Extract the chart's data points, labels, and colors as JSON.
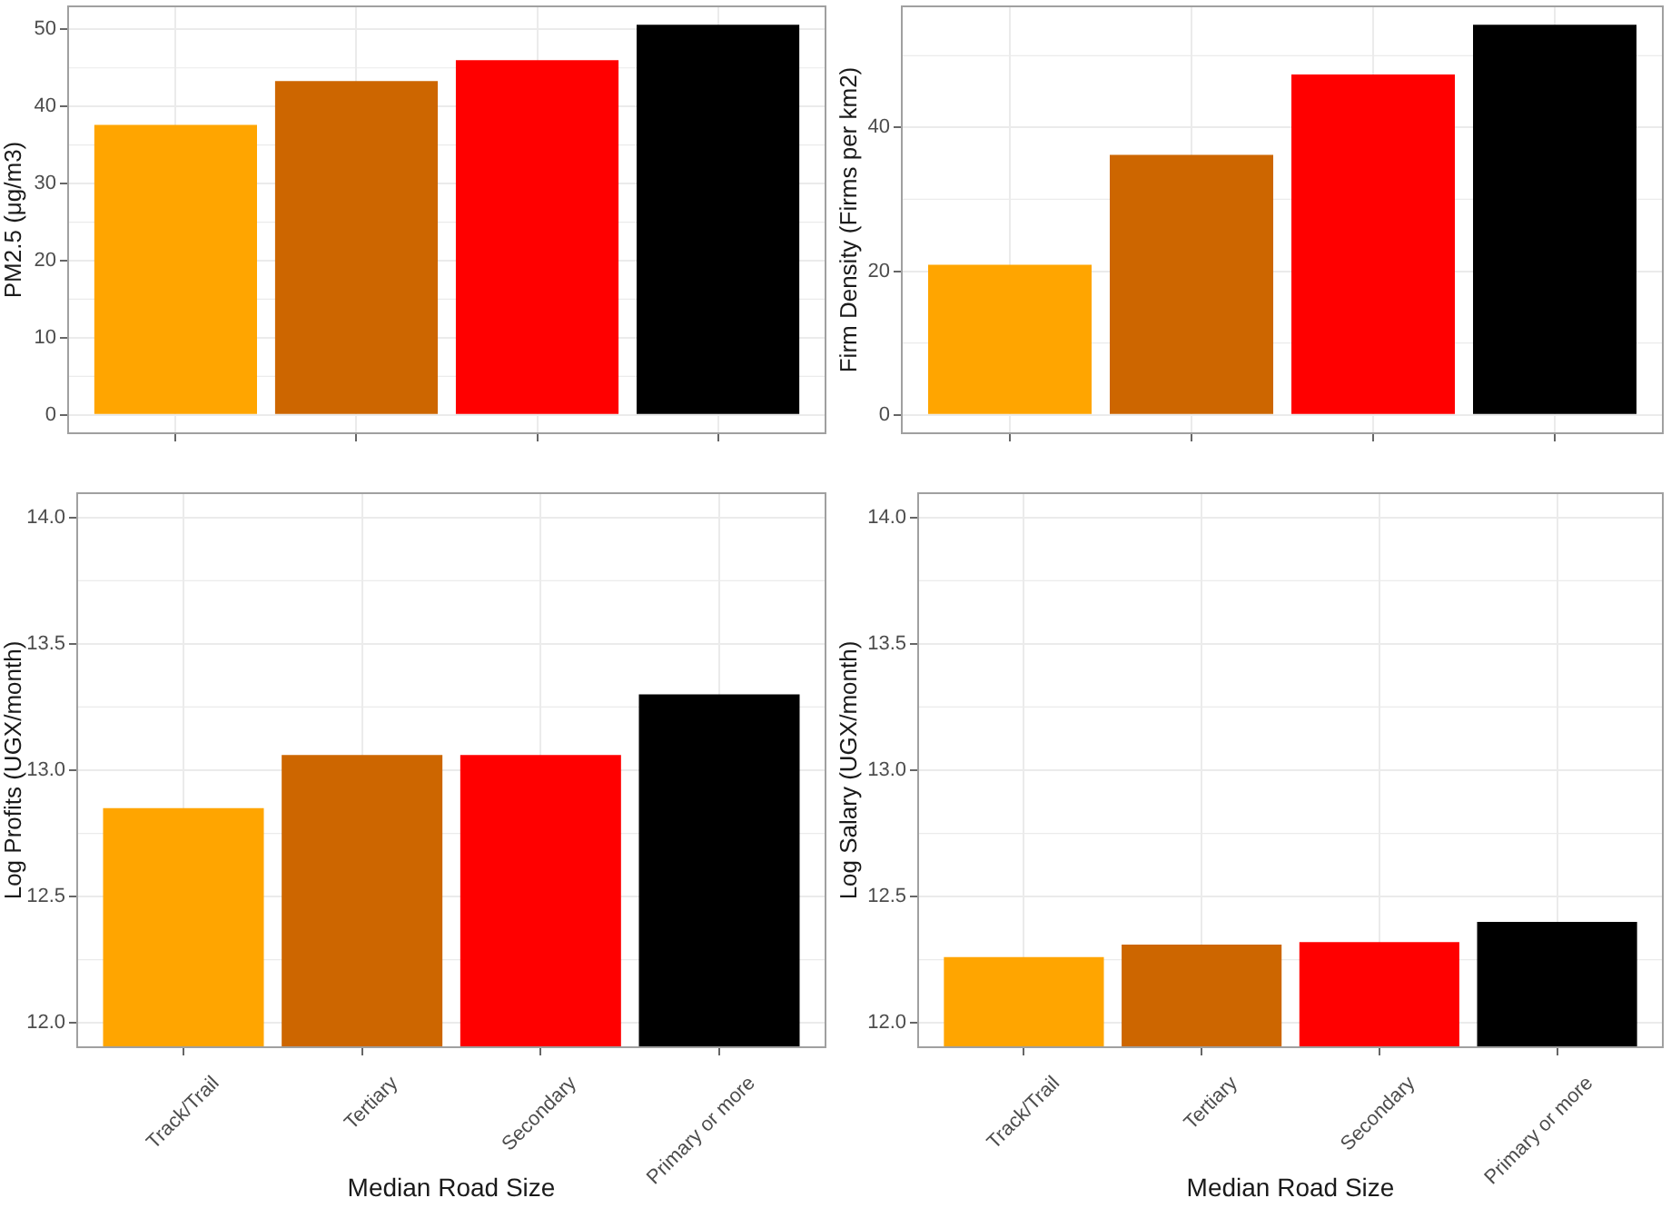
{
  "chart_data": [
    {
      "type": "bar",
      "ylabel": "PM2.5 (μg/m3)",
      "categories": [
        null,
        null,
        null,
        null
      ],
      "values": [
        37.6,
        43.3,
        46.0,
        50.6
      ],
      "colors": [
        "#ffa500",
        "#cd6600",
        "#ff0000",
        "#000000"
      ],
      "ylim": [
        -2.5,
        53.1
      ],
      "yticks": [
        0,
        10,
        20,
        30,
        40,
        50
      ],
      "grid": true
    },
    {
      "type": "bar",
      "ylabel": "Firm Density (Firms per km2)",
      "categories": [
        null,
        null,
        null,
        null
      ],
      "values": [
        20.9,
        36.2,
        47.4,
        54.3
      ],
      "colors": [
        "#ffa500",
        "#cd6600",
        "#ff0000",
        "#000000"
      ],
      "ylim": [
        -2.7,
        57.0
      ],
      "yticks": [
        0,
        20,
        40
      ],
      "grid": true
    },
    {
      "type": "bar",
      "xlabel": "Median Road Size",
      "ylabel": "Log Profits (UGX/month)",
      "categories": [
        "Track/Trail",
        "Tertiary",
        "Secondary",
        "Primary or more"
      ],
      "values": [
        12.85,
        13.06,
        13.06,
        13.3
      ],
      "colors": [
        "#ffa500",
        "#cd6600",
        "#ff0000",
        "#000000"
      ],
      "ylim": [
        11.9,
        14.1
      ],
      "yticks": [
        {
          "value": 12,
          "label": "12.0"
        },
        12.5,
        {
          "value": 13,
          "label": "13.0"
        },
        13.5,
        {
          "value": 14,
          "label": "14.0"
        }
      ],
      "grid": true
    },
    {
      "type": "bar",
      "xlabel": "Median Road Size",
      "ylabel": "Log Salary (UGX/month)",
      "categories": [
        "Track/Trail",
        "Tertiary",
        "Secondary",
        "Primary or more"
      ],
      "values": [
        12.26,
        12.31,
        12.32,
        12.4
      ],
      "colors": [
        "#ffa500",
        "#cd6600",
        "#ff0000",
        "#000000"
      ],
      "ylim": [
        11.9,
        14.1
      ],
      "yticks": [
        {
          "value": 12,
          "label": "12.0"
        },
        12.5,
        {
          "value": 13,
          "label": "13.0"
        },
        13.5,
        {
          "value": 14,
          "label": "14.0"
        }
      ],
      "grid": true
    }
  ]
}
